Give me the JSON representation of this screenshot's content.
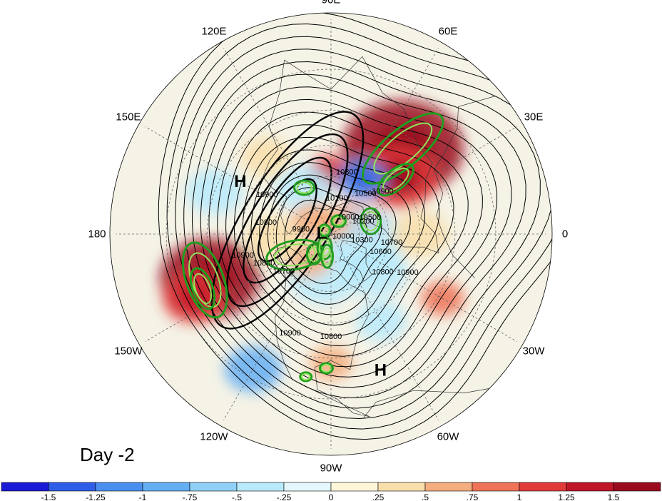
{
  "panel_label": "Day -2",
  "longitude_labels": [
    {
      "text": "90E",
      "lon": 90
    },
    {
      "text": "60E",
      "lon": 60
    },
    {
      "text": "120E",
      "lon": 120
    },
    {
      "text": "30E",
      "lon": 30
    },
    {
      "text": "150E",
      "lon": 150
    },
    {
      "text": "0",
      "lon": 0
    },
    {
      "text": "180",
      "lon": 180
    },
    {
      "text": "30W",
      "lon": -30
    },
    {
      "text": "150W",
      "lon": -150
    },
    {
      "text": "60W",
      "lon": -60
    },
    {
      "text": "120W",
      "lon": -120
    },
    {
      "text": "90W",
      "lon": -90
    }
  ],
  "pressure_centers": [
    {
      "text": "H",
      "lon": 150,
      "lat": 38
    },
    {
      "text": "L",
      "lon": 175,
      "lat": 85
    },
    {
      "text": "H",
      "lon": -70,
      "lat": 22
    }
  ],
  "contour_labels": [
    {
      "text": "10800",
      "lon": 75,
      "lat": 58
    },
    {
      "text": "10500",
      "lon": 48,
      "lat": 63
    },
    {
      "text": "10900",
      "lon": 38,
      "lat": 56
    },
    {
      "text": "10100",
      "lon": 80,
      "lat": 72
    },
    {
      "text": "10500",
      "lon": 20,
      "lat": 68
    },
    {
      "text": "10200",
      "lon": 18,
      "lat": 72
    },
    {
      "text": "10900",
      "lon": 150,
      "lat": 52
    },
    {
      "text": "10800",
      "lon": 172,
      "lat": 56
    },
    {
      "text": "9900",
      "lon": 175,
      "lat": 74
    },
    {
      "text": "10000",
      "lon": 40,
      "lat": 78
    },
    {
      "text": "10300",
      "lon": -15,
      "lat": 73
    },
    {
      "text": "10600",
      "lon": -22,
      "lat": 62
    },
    {
      "text": "10700",
      "lon": -10,
      "lat": 58
    },
    {
      "text": "10000",
      "lon": -20,
      "lat": 83
    },
    {
      "text": "10900",
      "lon": -165,
      "lat": 44
    },
    {
      "text": "10800",
      "lon": -155,
      "lat": 52
    },
    {
      "text": "10700",
      "lon": -140,
      "lat": 58
    },
    {
      "text": "10800",
      "lon": -38,
      "lat": 56
    },
    {
      "text": "10900",
      "lon": -28,
      "lat": 46
    },
    {
      "text": "10800",
      "lon": -90,
      "lat": 38
    },
    {
      "text": "10900",
      "lon": -112,
      "lat": 36
    }
  ],
  "colorbar": {
    "ticks": [
      "-1.5",
      "-1.25",
      "-1",
      "-.75",
      "-.5",
      "-.25",
      "0",
      ".25",
      ".5",
      ".75",
      "1",
      "1.25",
      "1.5"
    ],
    "colors": [
      "#1a1ad6",
      "#2e5ee8",
      "#4a8ff0",
      "#64aef3",
      "#8fd0f7",
      "#b8eafb",
      "#e4f8fc",
      "#fdf6d8",
      "#f8deaa",
      "#f4ad7e",
      "#ee7358",
      "#e13a3a",
      "#bf1628",
      "#9a0a1e"
    ]
  },
  "shading_blobs": [
    {
      "lon": 50,
      "lat": 35,
      "r": 85,
      "v": 1.5
    },
    {
      "lon": 40,
      "lat": 45,
      "r": 55,
      "v": 1.2
    },
    {
      "lon": -160,
      "lat": 28,
      "r": 70,
      "v": 1.5
    },
    {
      "lon": -155,
      "lat": 20,
      "r": 45,
      "v": 1.1
    },
    {
      "lon": 92,
      "lat": 58,
      "r": 30,
      "v": 1.1
    },
    {
      "lon": 60,
      "lat": 57,
      "r": 35,
      "v": -1.2
    },
    {
      "lon": 30,
      "lat": 75,
      "r": 30,
      "v": 0.9
    },
    {
      "lon": 18,
      "lat": 68,
      "r": 22,
      "v": 1.0
    },
    {
      "lon": -120,
      "lat": 18,
      "r": 40,
      "v": -0.9
    },
    {
      "lon": 120,
      "lat": 62,
      "r": 40,
      "v": -0.5
    },
    {
      "lon": -100,
      "lat": 68,
      "r": 50,
      "v": -0.45
    },
    {
      "lon": -40,
      "lat": 60,
      "r": 45,
      "v": -0.4
    },
    {
      "lon": -10,
      "lat": 72,
      "r": 55,
      "v": -0.35
    },
    {
      "lon": -90,
      "lat": 28,
      "r": 30,
      "v": 0.7
    },
    {
      "lon": -30,
      "lat": 28,
      "r": 30,
      "v": 0.8
    },
    {
      "lon": 160,
      "lat": 30,
      "r": 40,
      "v": -0.3
    },
    {
      "lon": 130,
      "lat": 40,
      "r": 35,
      "v": 0.3
    },
    {
      "lon": -130,
      "lat": 72,
      "r": 30,
      "v": 0.6
    },
    {
      "lon": -175,
      "lat": 60,
      "r": 40,
      "v": 0.35
    },
    {
      "lon": 0,
      "lat": 45,
      "r": 40,
      "v": 0.35
    },
    {
      "lon": -60,
      "lat": 40,
      "r": 35,
      "v": -0.3
    },
    {
      "lon": 90,
      "lat": 85,
      "r": 25,
      "v": 0.6
    },
    {
      "lon": 140,
      "lat": 78,
      "r": 30,
      "v": 0.5
    }
  ]
}
